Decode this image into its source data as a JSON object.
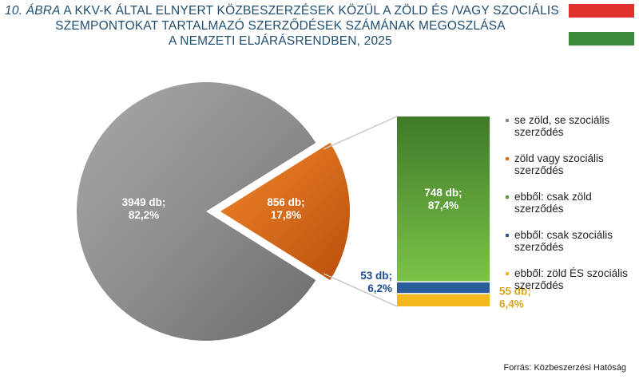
{
  "title": {
    "prefix": "10. ÁBRA",
    "line1": "A KKV-K ÁLTAL ELNYERT KÖZBESZERZÉSEK KÖZÜL A ZÖLD ÉS /VAGY SZOCIÁLIS",
    "line2": "SZEMPONTOKAT TARTALMAZÓ SZERZŐDÉSEK SZÁMÁNAK MEGOSZLÁSA",
    "line3": "A NEMZETI ELJÁRÁSRENDBEN, 2025"
  },
  "flag": {
    "colors": [
      "#e1312e",
      "#ffffff",
      "#3a8a3a"
    ]
  },
  "chart_data": {
    "type": "bar-of-pie",
    "pie": [
      {
        "label_value": "3949 db;",
        "label_pct": "82,2%",
        "value": 3949,
        "percent": 82.2,
        "color": "#8a8a8a"
      },
      {
        "label_value": "856 db;",
        "label_pct": "17,8%",
        "value": 856,
        "percent": 17.8,
        "color": "#e26e18"
      }
    ],
    "bar": [
      {
        "label_value": "748 db;",
        "label_pct": "87,4%",
        "value": 748,
        "percent": 87.4,
        "color": "#5a9c38"
      },
      {
        "label_value": "53 db;",
        "label_pct": "6,2%",
        "value": 53,
        "percent": 6.2,
        "color": "#2b5d9b"
      },
      {
        "label_value": "55 db;",
        "label_pct": "6,4%",
        "value": 55,
        "percent": 6.4,
        "color": "#f2b81e"
      }
    ],
    "legend": [
      {
        "label": "se zöld, se szociális szerződés",
        "color": "#8a8a8a"
      },
      {
        "label": "zöld vagy szociális szerződés",
        "color": "#e26e18"
      },
      {
        "label": "ebből: csak zöld szerződés",
        "color": "#5a9c38"
      },
      {
        "label": "ebből: csak szociális szerződés",
        "color": "#2b5d9b"
      },
      {
        "label": "ebből: zöld ÉS szociális szerződés",
        "color": "#f2b81e"
      }
    ]
  },
  "source": "Forrás: Közbeszerzési Hatóság"
}
